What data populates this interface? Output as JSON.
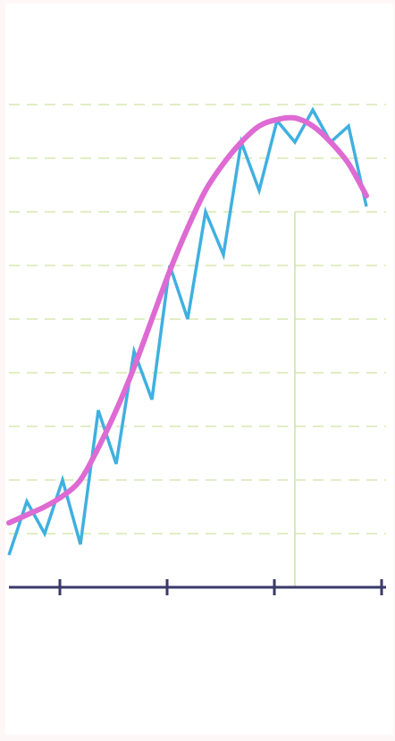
{
  "chart_data": {
    "type": "line",
    "title": "",
    "xlabel": "",
    "ylabel": "",
    "x": [
      0,
      1,
      2,
      3,
      4,
      5,
      6,
      7,
      8,
      9,
      10,
      11,
      12,
      13,
      14,
      15,
      16,
      17,
      18,
      19,
      20
    ],
    "xlim": [
      0,
      21
    ],
    "ylim": [
      -1,
      10
    ],
    "grid": "horizontal-dashed",
    "legend": "none",
    "series": [
      {
        "style": "jagged",
        "color": "#3fb0e0",
        "values": [
          0.6,
          1.6,
          1.0,
          2.0,
          0.8,
          3.3,
          2.3,
          4.4,
          3.5,
          6.0,
          5.0,
          7.0,
          6.2,
          8.3,
          7.4,
          8.7,
          8.3,
          8.9,
          8.3,
          8.6,
          7.1
        ]
      },
      {
        "style": "smooth",
        "color": "#de6ad3",
        "values": [
          1.2,
          1.35,
          1.5,
          1.7,
          2.0,
          2.6,
          3.3,
          4.1,
          5.0,
          5.9,
          6.7,
          7.4,
          7.9,
          8.3,
          8.6,
          8.72,
          8.75,
          8.6,
          8.3,
          7.9,
          7.3
        ]
      }
    ],
    "marker": {
      "x": 16,
      "color": "#c8e6a0"
    },
    "gridline_values": [
      1,
      2,
      3,
      4,
      5,
      6,
      7,
      8,
      9
    ],
    "axis": {
      "color": "#3a3a6a",
      "ticks": [
        3,
        9,
        15,
        21
      ]
    },
    "colors": {
      "grid": "#d6e8b0",
      "background": "#ffffff",
      "frame": "#fdf7f8"
    }
  }
}
